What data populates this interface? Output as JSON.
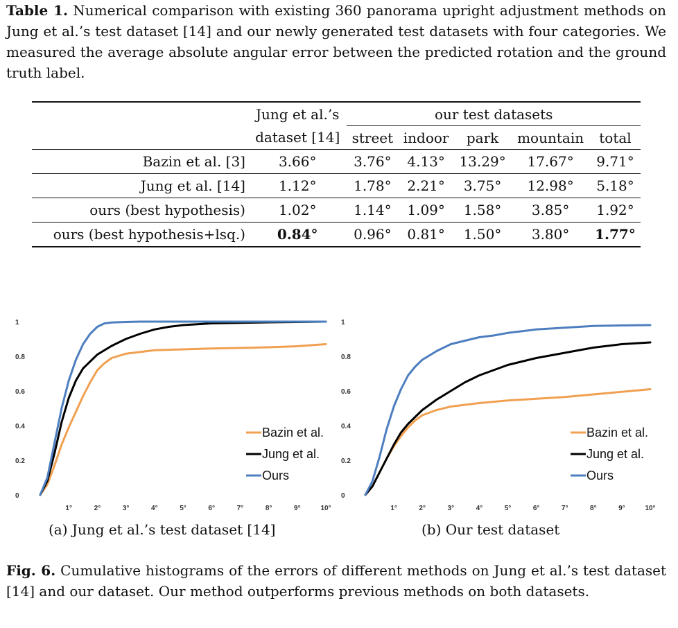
{
  "table_caption": {
    "label": "Table 1.",
    "text": "Numerical comparison with existing 360 panorama upright adjustment methods on Jung et al.’s test dataset [14] and our newly generated test datasets with four categories. We measured the average absolute angular error between the predicted rotation and the ground truth label."
  },
  "table": {
    "head_jung_line1": "Jung et al.’s",
    "head_jung_line2": "dataset [14]",
    "head_group": "our test datasets",
    "columns": [
      "street",
      "indoor",
      "park",
      "mountain",
      "total"
    ],
    "rows": [
      {
        "method": "Bazin et al. [3]",
        "jung": "3.66°",
        "vals": [
          "3.76°",
          "4.13°",
          "13.29°",
          "17.67°",
          "9.71°"
        ]
      },
      {
        "method": "Jung et al. [14]",
        "jung": "1.12°",
        "vals": [
          "1.78°",
          "2.21°",
          "3.75°",
          "12.98°",
          "5.18°"
        ]
      },
      {
        "method": "ours (best hypothesis)",
        "jung": "1.02°",
        "vals": [
          "1.14°",
          "1.09°",
          "1.58°",
          "3.85°",
          "1.92°"
        ]
      },
      {
        "method": "ours (best hypothesis+lsq.)",
        "jung": "0.84°",
        "vals": [
          "0.96°",
          "0.81°",
          "1.50°",
          "3.80°",
          "1.77°"
        ]
      }
    ]
  },
  "figure": {
    "subcaption_a": "(a) Jung et al.’s test dataset [14]",
    "subcaption_b": "(b) Our test dataset",
    "caption_label": "Fig. 6.",
    "caption_text": "Cumulative histograms of the errors of different methods on Jung et al.’s test dataset [14] and our dataset. Our method outperforms previous methods on both datasets."
  },
  "chart_data": [
    {
      "type": "line",
      "y_ticks": [
        "0",
        "0.2",
        "0.4",
        "0.6",
        "0.8",
        "1"
      ],
      "x_ticks": [
        "1°",
        "2°",
        "3°",
        "4°",
        "5°",
        "6°",
        "7°",
        "8°",
        "9°",
        "10°"
      ],
      "xlim": [
        0,
        10
      ],
      "ylim": [
        0,
        1
      ],
      "grid": false,
      "legend": "bottom-right",
      "series": [
        {
          "name": "Bazin et al.",
          "color": "#f0a050",
          "x": [
            0,
            0.25,
            0.5,
            0.75,
            1,
            1.25,
            1.5,
            1.75,
            2,
            2.25,
            2.5,
            3,
            3.5,
            4,
            5,
            6,
            7,
            8,
            9,
            10
          ],
          "y": [
            0,
            0.06,
            0.17,
            0.29,
            0.39,
            0.48,
            0.57,
            0.65,
            0.72,
            0.76,
            0.79,
            0.815,
            0.825,
            0.835,
            0.84,
            0.845,
            0.848,
            0.852,
            0.858,
            0.87
          ]
        },
        {
          "name": "Jung et al.",
          "color": "#000000",
          "x": [
            0,
            0.25,
            0.5,
            0.75,
            1,
            1.25,
            1.5,
            1.75,
            2,
            2.5,
            3,
            3.5,
            4,
            4.5,
            5,
            5.5,
            6,
            7,
            8,
            9,
            10
          ],
          "y": [
            0,
            0.08,
            0.24,
            0.42,
            0.56,
            0.66,
            0.73,
            0.77,
            0.81,
            0.86,
            0.9,
            0.93,
            0.955,
            0.97,
            0.98,
            0.985,
            0.99,
            0.993,
            0.996,
            0.998,
            1
          ]
        },
        {
          "name": "Ours",
          "color": "#4d7ebf",
          "x": [
            0,
            0.25,
            0.5,
            0.75,
            1,
            1.25,
            1.5,
            1.75,
            2,
            2.25,
            2.5,
            3,
            3.5,
            4,
            5,
            6,
            7,
            8,
            9,
            10
          ],
          "y": [
            0,
            0.1,
            0.3,
            0.5,
            0.66,
            0.78,
            0.87,
            0.93,
            0.97,
            0.99,
            0.995,
            0.998,
            1,
            1,
            1,
            1,
            1,
            1,
            1,
            1
          ]
        }
      ]
    },
    {
      "type": "line",
      "y_ticks": [
        "0",
        "0.2",
        "0.4",
        "0.6",
        "0.8",
        "1"
      ],
      "x_ticks": [
        "1°",
        "2°",
        "3°",
        "4°",
        "5°",
        "6°",
        "7°",
        "8°",
        "9°",
        "10°"
      ],
      "xlim": [
        0,
        10
      ],
      "ylim": [
        0,
        1
      ],
      "grid": false,
      "legend": "bottom-right",
      "series": [
        {
          "name": "Bazin et al.",
          "color": "#f0a050",
          "x": [
            0,
            0.25,
            0.5,
            0.75,
            1,
            1.25,
            1.5,
            1.75,
            2,
            2.5,
            3,
            3.5,
            4,
            5,
            6,
            7,
            8,
            9,
            10
          ],
          "y": [
            0,
            0.05,
            0.13,
            0.21,
            0.28,
            0.34,
            0.39,
            0.43,
            0.46,
            0.49,
            0.51,
            0.52,
            0.53,
            0.545,
            0.555,
            0.565,
            0.58,
            0.595,
            0.61
          ]
        },
        {
          "name": "Jung et al.",
          "color": "#000000",
          "x": [
            0,
            0.25,
            0.5,
            0.75,
            1,
            1.25,
            1.5,
            1.75,
            2,
            2.5,
            3,
            3.5,
            4,
            4.5,
            5,
            5.5,
            6,
            7,
            8,
            9,
            10
          ],
          "y": [
            0,
            0.05,
            0.13,
            0.21,
            0.29,
            0.36,
            0.41,
            0.45,
            0.49,
            0.55,
            0.6,
            0.65,
            0.69,
            0.72,
            0.75,
            0.77,
            0.79,
            0.82,
            0.85,
            0.87,
            0.88
          ]
        },
        {
          "name": "Ours",
          "color": "#4d7ebf",
          "x": [
            0,
            0.25,
            0.5,
            0.75,
            1,
            1.25,
            1.5,
            1.75,
            2,
            2.5,
            3,
            3.5,
            4,
            4.5,
            5,
            6,
            7,
            8,
            9,
            10
          ],
          "y": [
            0,
            0.08,
            0.22,
            0.38,
            0.51,
            0.61,
            0.69,
            0.74,
            0.78,
            0.83,
            0.87,
            0.89,
            0.91,
            0.92,
            0.935,
            0.955,
            0.965,
            0.975,
            0.978,
            0.98
          ]
        }
      ]
    }
  ]
}
